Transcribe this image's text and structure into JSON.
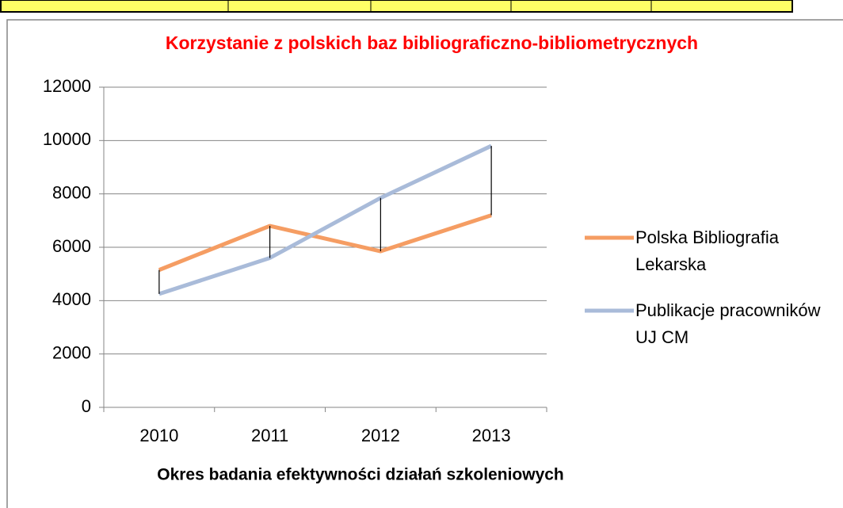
{
  "chart_data": {
    "type": "line",
    "title": "Korzystanie z polskich baz bibliograficzno-bibliometrycznych",
    "x_label": "Okres badania efektywności działań szkoleniowych",
    "categories": [
      "2010",
      "2011",
      "2012",
      "2013"
    ],
    "series": [
      {
        "name": "Polska Bibliografia Lekarska",
        "color": "#f59d63",
        "values": [
          5150,
          6800,
          5850,
          7200
        ]
      },
      {
        "name": "Publikacje pracowników UJ CM",
        "color": "#a9bbd9",
        "values": [
          4250,
          5600,
          7850,
          9800
        ]
      }
    ],
    "ylim": [
      0,
      12000
    ],
    "yticks": [
      0,
      2000,
      4000,
      6000,
      8000,
      10000,
      12000
    ],
    "grid": true,
    "hi_lo_lines": true,
    "legend": "right"
  }
}
